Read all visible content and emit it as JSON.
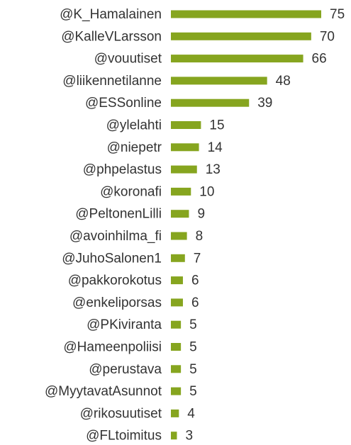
{
  "chart_data": {
    "type": "bar",
    "orientation": "horizontal",
    "categories": [
      "@K_Hamalainen",
      "@KalleVLarsson",
      "@vouutiset",
      "@liikennetilanne",
      "@ESSonline",
      "@ylelahti",
      "@niepetr",
      "@phpelastus",
      "@koronafi",
      "@PeltonenLilli",
      "@avoinhilma_fi",
      "@JuhoSalonen1",
      "@pakkorokotus",
      "@enkeliporsas",
      "@PKiviranta",
      "@Hameenpoliisi",
      "@perustava",
      "@MyytavatAsunnot",
      "@rikosuutiset",
      "@FLtoimitus"
    ],
    "values": [
      75,
      70,
      66,
      48,
      39,
      15,
      14,
      13,
      10,
      9,
      8,
      7,
      6,
      6,
      5,
      5,
      5,
      5,
      4,
      3
    ],
    "color": "#86a51f"
  }
}
